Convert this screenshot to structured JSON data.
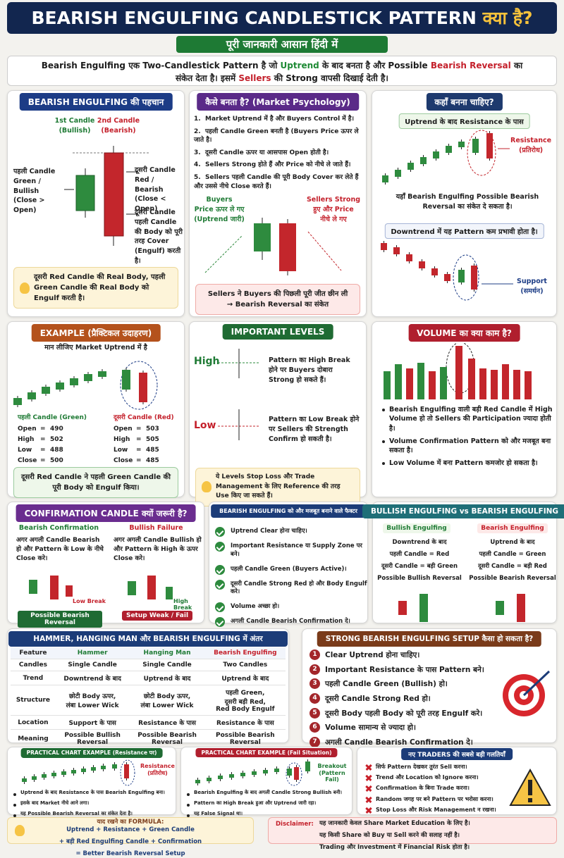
{
  "header": {
    "title": "BEARISH ENGULFING CANDLESTICK PATTERN",
    "title_hindi": "क्या है?",
    "subtitle": "पूरी जानकारी आसान हिंदी में"
  },
  "intro": {
    "parts": [
      "Bearish Engulfing एक Two-Candlestick Pattern है जो ",
      "Uptrend",
      " के बाद बनता है और Possible ",
      "Bearish Reversal",
      " का संकेत देता है। इसमें ",
      "Sellers",
      " की Strong वापसी दिखाई देती है।"
    ]
  },
  "identify": {
    "title": "BEARISH ENGULFING की पहचान",
    "c1": "1st Candle",
    "c1b": "(Bullish)",
    "c2": "2nd Candle",
    "c2b": "(Bearish)",
    "left": "पहली Candle Green / Bullish (Close > Open)",
    "right1": "दूसरी Candle Red / Bearish (Close < Open)",
    "right2": "दूसरी Candle पहली Candle की Body को पूरी तरह Cover (Engulf) करती है।",
    "note": "दूसरी Red Candle की Real Body, पहली Green Candle की Real Body को Engulf करती है।"
  },
  "psychology": {
    "title": "कैसे बनता है? (Market Psychology)",
    "steps": [
      {
        "n": "1.",
        "text": "Market Uptrend में है और Buyers Control में है।"
      },
      {
        "n": "2.",
        "text": "पहली Candle Green बनती है (Buyers Price ऊपर ले जाते है।"
      },
      {
        "n": "3.",
        "text": "दूसरी Candle ऊपर या आसपास Open होती है।"
      },
      {
        "n": "4.",
        "text": "Sellers Strong होते हैं और Price को नीचे ले जाते हैं।"
      },
      {
        "n": "5.",
        "text": "Sellers पहली Candle की पूरी Body Cover कर लेते हैं और उससे नीचे Close करते हैं।"
      }
    ],
    "buyers": "Buyers\nPrice ऊपर ले गए\n(Uptrend जारी)",
    "sellers": "Sellers Strong\nहुए और Price\nनीचे ले गए",
    "note1": "Sellers ने Buyers की पिछली पूरी जीत छीन ली",
    "note2": "→ Bearish Reversal का संकेत"
  },
  "where": {
    "title": "कहाँ बनना चाहिए?",
    "tag1": "Uptrend के बाद Resistance के पास",
    "resistance": "Resistance",
    "resistance_hi": "(प्रतिरोध)",
    "text1": "यहाँ Bearish Engulfing Possible Bearish Reversal का संकेत दे सकता है।",
    "tag2": "Downtrend में यह Pattern कम प्रभावी होता है।",
    "support": "Support",
    "support_hi": "(समर्थन)"
  },
  "example": {
    "title": "EXAMPLE (प्रैक्टिकल उदाहरण)",
    "intro": "मान लीजिए Market Uptrend में है",
    "sep": "=",
    "candles": [
      {
        "name": "पहली Candle (Green)",
        "rows": [
          {
            "label": "Open",
            "value": 490
          },
          {
            "label": "High",
            "value": 502
          },
          {
            "label": "Low",
            "value": 488
          },
          {
            "label": "Close",
            "value": 500
          }
        ]
      },
      {
        "name": "दूसरी Candle (Red)",
        "rows": [
          {
            "label": "Open",
            "value": 503
          },
          {
            "label": "High",
            "value": 505
          },
          {
            "label": "Low",
            "value": 485
          },
          {
            "label": "Close",
            "value": 485
          }
        ]
      }
    ],
    "note": "दूसरी Red Candle ने पहली Green Candle की पूरी Body को Engulf किया।"
  },
  "levels": {
    "title": "IMPORTANT LEVELS",
    "high": "High",
    "high_text": "Pattern का High Break होने पर Buyers दोबारा Strong हो सकते हैं।",
    "low": "Low",
    "low_text": "Pattern का Low Break होने पर Sellers की Strength Confirm हो सकती है।",
    "note": "ये Levels Stop Loss और Trade Management के लिए Reference की तरह Use किए जा सकते हैं।"
  },
  "volume": {
    "title": "VOLUME का क्या काम है?",
    "bullets": [
      "Bearish Engulfing वाली बड़ी Red Candle में High Volume हो तो Sellers की Participation ज्यादा होती है।",
      "Volume Confirmation Pattern को और मजबूत बना सकता है।",
      "Low Volume में बना Pattern कमजोर हो सकता है।"
    ]
  },
  "confirmation": {
    "title": "CONFIRMATION CANDLE क्यों जरूरी है?",
    "left_head": "Bearish Confirmation",
    "left_text": "अगर अगली Candle Bearish हो और Pattern के Low के नीचे Close करे।",
    "left_mark": "Low Break",
    "left_badge": "Possible Bearish Reversal",
    "right_head": "Bullish Failure",
    "right_text": "अगर अगली Candle Bullish हो और Pattern के High के ऊपर Close करे।",
    "right_mark": "High Break",
    "right_badge": "Setup Weak / Fail"
  },
  "factors": {
    "title": "BEARISH ENGULFING को और मजबूत बनाने वाले फैक्टर",
    "items": [
      "Uptrend Clear होना चाहिए।",
      "Important Resistance या Supply Zone पर बने।",
      "पहली Candle Green (Buyers Active)।",
      "दूसरी Candle Strong Red हो और Body Engulf करे।",
      "Volume अच्छा हो।",
      "अगली Candle Bearish Confirmation दे।"
    ]
  },
  "compare": {
    "title": "BULLISH ENGULFING vs BEARISH ENGULFING",
    "bull_head": "Bullish Engulfing",
    "bull": [
      "Downtrend के बाद",
      "पहली Candle = Red",
      "दूसरी Candle = बड़ी Green",
      "Possible Bullish Reversal"
    ],
    "bear_head": "Bearish Engulfing",
    "bear": [
      "Uptrend के बाद",
      "पहली Candle = Green",
      "दूसरी Candle = बड़ी Red",
      "Possible Bearish Reversal"
    ]
  },
  "table": {
    "title": "HAMMER, HANGING MAN और BEARISH ENGULFING में अंतर",
    "headers": [
      "Feature",
      "Hammer",
      "Hanging Man",
      "Bearish Engulfing"
    ],
    "rows": [
      [
        "Candles",
        "Single Candle",
        "Single Candle",
        "Two Candles"
      ],
      [
        "Trend",
        "Downtrend के बाद",
        "Uptrend के बाद",
        "Uptrend के बाद"
      ],
      [
        "Structure",
        "छोटी Body ऊपर,\nलंबा Lower Wick",
        "छोटी Body ऊपर,\nलंबा Lower Wick",
        "पहली Green,\nदूसरी बड़ी Red,\nRed Body Engulf"
      ],
      [
        "Location",
        "Support के पास",
        "Resistance के पास",
        "Resistance के पास"
      ],
      [
        "Meaning",
        "Possible Bullish\nReversal",
        "Possible Bearish\nReversal",
        "Possible Bearish\nReversal"
      ]
    ]
  },
  "setup": {
    "title": "STRONG BEARISH ENGULFING SETUP कैसा हो सकता है?",
    "items": [
      {
        "n": "1",
        "text": "Clear Uptrend होना चाहिए।"
      },
      {
        "n": "2",
        "text": "Important Resistance के पास Pattern बने।"
      },
      {
        "n": "3",
        "text": "पहली Candle Green (Bullish) हो।"
      },
      {
        "n": "4",
        "text": "दूसरी Candle Strong Red हो।"
      },
      {
        "n": "5",
        "text": "दूसरी Body पहली Body को पूरी तरह Engulf करे।"
      },
      {
        "n": "6",
        "text": "Volume सामान्य से ज्यादा हो।"
      },
      {
        "n": "7",
        "text": "अगली Candle Bearish Confirmation दे।"
      }
    ]
  },
  "practical1": {
    "title": "PRACTICAL CHART EXAMPLE (Resistance पर)",
    "mark": "Resistance",
    "mark_hi": "(प्रतिरोध)",
    "bullets": [
      "Uptrend के बाद Resistance के पास Bearish Engulfing बना।",
      "इसके बाद Market नीचे आने लगा।",
      "यह Possible Bearish Reversal का संकेत देता है।"
    ]
  },
  "practical2": {
    "title": "PRACTICAL CHART EXAMPLE (Fail Situation)",
    "mark": "Breakout",
    "mark_hi": "(Pattern Fail)",
    "bullets": [
      "Bearish Engulfing के बाद अगली Candle Strong Bullish बनी।",
      "Pattern का High Break हुआ और Uptrend जारी रहा।",
      "यह False Signal था।"
    ]
  },
  "mistakes": {
    "title": "नए TRADERS की सबसे बड़ी गलतियाँ",
    "items": [
      "सिर्फ Pattern देखकर तुरंत Sell करना।",
      "Trend और Location को Ignore करना।",
      "Confirmation के बिना Trade करना।",
      "Random जगह पर बने Pattern पर भरोसा करना।",
      "Stop Loss और Risk Management न रखना।"
    ]
  },
  "formula": {
    "title": "याद रखने का FORMULA:",
    "lines": [
      "Uptrend + Resistance + Green Candle",
      "+ बड़ी Red Engulfing Candle + Confirmation",
      "= Better Bearish Reversal Setup"
    ]
  },
  "disclaimer": {
    "label": "Disclaimer:",
    "lines": [
      "यह जानकारी केवल Share Market Education के लिए है।",
      "यह किसी Share को Buy या Sell करने की सलाह नहीं है।",
      "Trading और Investment में Financial Risk होता है।"
    ]
  }
}
